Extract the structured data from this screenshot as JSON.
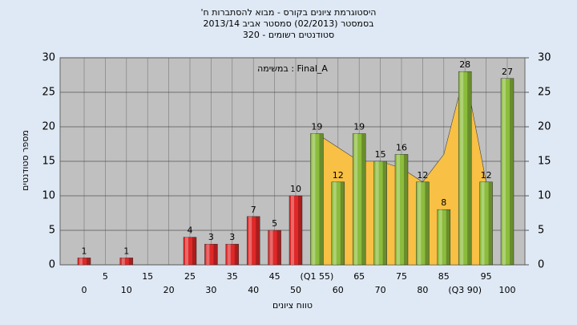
{
  "chart_data": {
    "type": "bar",
    "title": [
      "היסטוגרמת ציונים בקורס - מבוא להסתברות ח'",
      "בסמסטר (02/2013) סמסטר אביב 2013/14",
      "סטודנטים רשומים - 320"
    ],
    "annotation": "במשימה : Final_A",
    "xlabel": "טווח ציונים",
    "ylabel": "מספר סטודנטים",
    "categories": [
      "0",
      "5",
      "10",
      "15",
      "20",
      "25",
      "30",
      "35",
      "40",
      "45",
      "50",
      "(Q1 55)",
      "60",
      "65",
      "70",
      "75",
      "80",
      "85",
      "(Q3 90)",
      "95",
      "100"
    ],
    "values": [
      1,
      0,
      1,
      0,
      0,
      4,
      3,
      3,
      7,
      5,
      10,
      19,
      12,
      19,
      15,
      16,
      12,
      8,
      28,
      12,
      27
    ],
    "colors": [
      "#e02828",
      "#e02828",
      "#e02828",
      "#e02828",
      "#e02828",
      "#e02828",
      "#e02828",
      "#e02828",
      "#e02828",
      "#e02828",
      "#e02828",
      "#8cbc3c",
      "#8cbc3c",
      "#8cbc3c",
      "#8cbc3c",
      "#8cbc3c",
      "#8cbc3c",
      "#8cbc3c",
      "#8cbc3c",
      "#8cbc3c",
      "#8cbc3c"
    ],
    "area": {
      "color": "#f8c044",
      "values": [
        null,
        null,
        null,
        null,
        null,
        null,
        null,
        null,
        null,
        null,
        null,
        19,
        17,
        15,
        15,
        14,
        12,
        16,
        28,
        12,
        null
      ]
    },
    "ylim": [
      0,
      30
    ],
    "yticks": [
      0,
      5,
      10,
      15,
      20,
      25,
      30
    ],
    "y2lim": [
      0,
      30
    ],
    "y2ticks": [
      0,
      5,
      10,
      15,
      20,
      25,
      30
    ],
    "grid": true
  }
}
